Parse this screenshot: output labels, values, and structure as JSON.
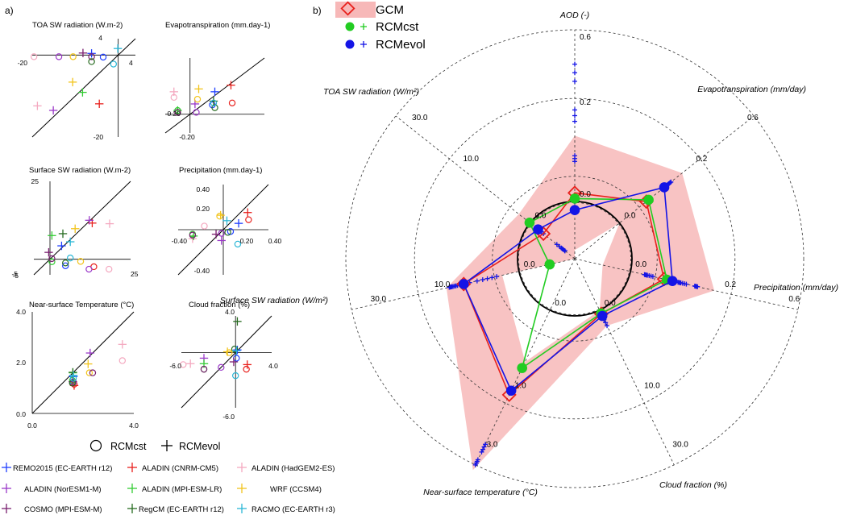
{
  "panel_labels": {
    "a": "a)",
    "b": "b)"
  },
  "colors": {
    "remo": "#1f3fff",
    "cnrm": "#e8201c",
    "hadgem": "#f4a9c0",
    "noresm": "#9a38c8",
    "mpilr": "#33cc33",
    "wrf": "#f2c41c",
    "cosmo": "#7a1f70",
    "regcm": "#276b20",
    "racmo": "#2bb7d6",
    "gcm": "#e8201c",
    "cst": "#22cc22",
    "evol": "#1414e6",
    "band": "#f7b8b8"
  },
  "chart_data": [
    {
      "type": "scatter",
      "title": "TOA SW radiation (W.m-2)",
      "xlim": [
        -20,
        4
      ],
      "ylim": [
        -20,
        4
      ],
      "tick_labels": {
        "x_left": "-20",
        "x_right": "4",
        "y_top": "4",
        "y_bottom": "-20"
      },
      "points": [
        {
          "model": "remo",
          "m": "o",
          "x": -3.5,
          "y": -0.5
        },
        {
          "model": "remo",
          "m": "+",
          "x": -6.2,
          "y": 0.4
        },
        {
          "model": "cnrm",
          "m": "+",
          "x": -4.4,
          "y": -11.9
        },
        {
          "model": "hadgem",
          "m": "o",
          "x": -19.6,
          "y": -0.4
        },
        {
          "model": "hadgem",
          "m": "+",
          "x": -18.8,
          "y": -12.4
        },
        {
          "model": "noresm",
          "m": "o",
          "x": -13.8,
          "y": -0.4
        },
        {
          "model": "noresm",
          "m": "+",
          "x": -15.1,
          "y": -13.5
        },
        {
          "model": "mpilr",
          "m": "+",
          "x": -8.3,
          "y": -9.1
        },
        {
          "model": "wrf",
          "m": "o",
          "x": -10.5,
          "y": -0.4
        },
        {
          "model": "wrf",
          "m": "+",
          "x": -10.6,
          "y": -6.6
        },
        {
          "model": "cosmo",
          "m": "o",
          "x": -6.2,
          "y": -0.4
        },
        {
          "model": "cosmo",
          "m": "+",
          "x": -8.2,
          "y": 0.5
        },
        {
          "model": "regcm",
          "m": "o",
          "x": -6.2,
          "y": -1.6
        },
        {
          "model": "racmo",
          "m": "o",
          "x": -1.1,
          "y": -2.2
        },
        {
          "model": "racmo",
          "m": "+",
          "x": -0.1,
          "y": 1.6
        }
      ]
    },
    {
      "type": "scatter",
      "title": "Evapotranspiration (mm.day-1)",
      "xlim": [
        -0.2,
        0.6
      ],
      "ylim": [
        -0.2,
        0.6
      ],
      "tick_labels": {
        "x_left": "-0.20",
        "y_bottom": "-0.20"
      },
      "points": [
        {
          "model": "remo",
          "m": "o",
          "x": 0.18,
          "y": 0.1
        },
        {
          "model": "remo",
          "m": "+",
          "x": 0.2,
          "y": 0.24
        },
        {
          "model": "cnrm",
          "m": "o",
          "x": 0.34,
          "y": 0.12
        },
        {
          "model": "cnrm",
          "m": "+",
          "x": 0.33,
          "y": 0.31
        },
        {
          "model": "hadgem",
          "m": "o",
          "x": -0.13,
          "y": 0.18
        },
        {
          "model": "hadgem",
          "m": "+",
          "x": -0.13,
          "y": 0.24
        },
        {
          "model": "noresm",
          "m": "o",
          "x": 0.05,
          "y": 0.02
        },
        {
          "model": "noresm",
          "m": "+",
          "x": 0.04,
          "y": 0.11
        },
        {
          "model": "mpilr",
          "m": "o",
          "x": -0.1,
          "y": 0.04
        },
        {
          "model": "mpilr",
          "m": "+",
          "x": -0.1,
          "y": 0.04
        },
        {
          "model": "wrf",
          "m": "o",
          "x": 0.06,
          "y": 0.16
        },
        {
          "model": "wrf",
          "m": "+",
          "x": 0.07,
          "y": 0.27
        },
        {
          "model": "cosmo",
          "m": "o",
          "x": -0.1,
          "y": 0.02
        },
        {
          "model": "regcm",
          "m": "o",
          "x": 0.2,
          "y": 0.07
        },
        {
          "model": "regcm",
          "m": "+",
          "x": 0.19,
          "y": 0.14
        },
        {
          "model": "racmo",
          "m": "o",
          "x": 0.19,
          "y": 0.12
        }
      ]
    },
    {
      "type": "scatter",
      "title": "Surface SW radiation (W.m-2)",
      "xlim": [
        -5,
        25
      ],
      "ylim": [
        -5,
        25
      ],
      "tick_labels": {
        "x_left": "-5",
        "x_right": "25",
        "y_top": "25",
        "y_bottom": "-5"
      },
      "points": [
        {
          "model": "remo",
          "m": "o",
          "x": 4.8,
          "y": -2.1
        },
        {
          "model": "remo",
          "m": "+",
          "x": 3.6,
          "y": 4.3
        },
        {
          "model": "cnrm",
          "m": "o",
          "x": 13.6,
          "y": -2.4
        },
        {
          "model": "cnrm",
          "m": "+",
          "x": 13.1,
          "y": 11.6
        },
        {
          "model": "hadgem",
          "m": "o",
          "x": 18.3,
          "y": -3.2
        },
        {
          "model": "hadgem",
          "m": "+",
          "x": 18.5,
          "y": 11.4
        },
        {
          "model": "noresm",
          "m": "o",
          "x": 12.1,
          "y": -3.2
        },
        {
          "model": "noresm",
          "m": "+",
          "x": 12.2,
          "y": 12.5
        },
        {
          "model": "mpilr",
          "m": "o",
          "x": 0.6,
          "y": -0.8
        },
        {
          "model": "mpilr",
          "m": "+",
          "x": 0.6,
          "y": 7.6
        },
        {
          "model": "wrf",
          "m": "o",
          "x": 9.5,
          "y": -0.7
        },
        {
          "model": "wrf",
          "m": "+",
          "x": 7.8,
          "y": 9.8
        },
        {
          "model": "cosmo",
          "m": "o",
          "x": 0.6,
          "y": 0.2
        },
        {
          "model": "cosmo",
          "m": "+",
          "x": -0.4,
          "y": 2.2
        },
        {
          "model": "regcm",
          "m": "o",
          "x": 4.8,
          "y": -1.2
        },
        {
          "model": "regcm",
          "m": "+",
          "x": 4.0,
          "y": 8.2
        },
        {
          "model": "racmo",
          "m": "o",
          "x": 6.3,
          "y": 0.4
        },
        {
          "model": "racmo",
          "m": "+",
          "x": 6.3,
          "y": 5.6
        }
      ]
    },
    {
      "type": "scatter",
      "title": "Precipitation (mm.day-1)",
      "xlim": [
        -0.5,
        0.5
      ],
      "ylim": [
        -0.5,
        0.5
      ],
      "tick_labels": {
        "x_left": "-0.40",
        "x_mid": "0.20",
        "x_right": "0.40",
        "y_top": "0.40",
        "y_mid": "0.20",
        "y_bottom": "-0.40"
      },
      "points": [
        {
          "model": "remo",
          "m": "o",
          "x": 0.08,
          "y": -0.02
        },
        {
          "model": "remo",
          "m": "+",
          "x": 0.17,
          "y": 0.07
        },
        {
          "model": "cnrm",
          "m": "o",
          "x": 0.28,
          "y": 0.11
        },
        {
          "model": "cnrm",
          "m": "+",
          "x": 0.27,
          "y": 0.19
        },
        {
          "model": "hadgem",
          "m": "o",
          "x": -0.21,
          "y": 0.04
        },
        {
          "model": "hadgem",
          "m": "+",
          "x": -0.34,
          "y": -0.1
        },
        {
          "model": "noresm",
          "m": "o",
          "x": -0.02,
          "y": -0.04
        },
        {
          "model": "noresm",
          "m": "+",
          "x": -0.02,
          "y": -0.12
        },
        {
          "model": "mpilr",
          "m": "o",
          "x": -0.34,
          "y": -0.05
        },
        {
          "model": "mpilr",
          "m": "+",
          "x": -0.33,
          "y": -0.07
        },
        {
          "model": "wrf",
          "m": "o",
          "x": -0.04,
          "y": 0.15
        },
        {
          "model": "wrf",
          "m": "+",
          "x": -0.03,
          "y": 0.16
        },
        {
          "model": "cosmo",
          "m": "o",
          "x": -0.34,
          "y": -0.06
        },
        {
          "model": "cosmo",
          "m": "+",
          "x": -0.08,
          "y": -0.05
        },
        {
          "model": "regcm",
          "m": "o",
          "x": 0.05,
          "y": -0.03
        },
        {
          "model": "racmo",
          "m": "o",
          "x": 0.16,
          "y": -0.16
        },
        {
          "model": "racmo",
          "m": "+",
          "x": 0.04,
          "y": 0.1
        }
      ]
    },
    {
      "type": "scatter",
      "title": "Near-surface Temperature (°C)",
      "xlim": [
        0,
        4
      ],
      "ylim": [
        0,
        4
      ],
      "tick_labels": {
        "x_left": "0.0",
        "x_right": "4.0",
        "y_top": "4.0",
        "y_mid": "2.0",
        "y_bottom": "0.0"
      },
      "points": [
        {
          "model": "remo",
          "m": "o",
          "x": 1.6,
          "y": 1.2
        },
        {
          "model": "remo",
          "m": "+",
          "x": 1.62,
          "y": 1.45
        },
        {
          "model": "cnrm",
          "m": "o",
          "x": 1.65,
          "y": 1.15
        },
        {
          "model": "cnrm",
          "m": "+",
          "x": 1.65,
          "y": 1.1
        },
        {
          "model": "hadgem",
          "m": "o",
          "x": 3.55,
          "y": 2.08
        },
        {
          "model": "hadgem",
          "m": "+",
          "x": 3.55,
          "y": 2.72
        },
        {
          "model": "noresm",
          "m": "o",
          "x": 1.62,
          "y": 1.25
        },
        {
          "model": "noresm",
          "m": "+",
          "x": 2.28,
          "y": 2.38
        },
        {
          "model": "mpilr",
          "m": "o",
          "x": 1.58,
          "y": 1.3
        },
        {
          "model": "mpilr",
          "m": "+",
          "x": 1.6,
          "y": 1.6
        },
        {
          "model": "wrf",
          "m": "o",
          "x": 2.25,
          "y": 1.6
        },
        {
          "model": "wrf",
          "m": "+",
          "x": 2.2,
          "y": 1.95
        },
        {
          "model": "cosmo",
          "m": "o",
          "x": 2.38,
          "y": 1.6
        },
        {
          "model": "cosmo",
          "m": "+",
          "x": 1.6,
          "y": 1.25
        },
        {
          "model": "regcm",
          "m": "o",
          "x": 1.58,
          "y": 1.2
        },
        {
          "model": "regcm",
          "m": "+",
          "x": 1.6,
          "y": 1.62
        },
        {
          "model": "racmo",
          "m": "o",
          "x": 1.62,
          "y": 1.38
        },
        {
          "model": "racmo",
          "m": "+",
          "x": 1.62,
          "y": 1.5
        }
      ]
    },
    {
      "type": "scatter",
      "title": "Cloud fraction (%)",
      "xlim": [
        -6,
        4
      ],
      "ylim": [
        -6,
        4
      ],
      "tick_labels": {
        "x_left": "-6.0",
        "x_right": "4.0",
        "y_top": "4.0",
        "y_bottom": "-6.0"
      },
      "points": [
        {
          "model": "remo",
          "m": "o",
          "x": 0.1,
          "y": -0.6
        },
        {
          "model": "remo",
          "m": "+",
          "x": 0.2,
          "y": 0.3
        },
        {
          "model": "cnrm",
          "m": "o",
          "x": 1.2,
          "y": -1.8
        },
        {
          "model": "cnrm",
          "m": "+",
          "x": 1.3,
          "y": -1.3
        },
        {
          "model": "hadgem",
          "m": "o",
          "x": -5.8,
          "y": -1.3
        },
        {
          "model": "hadgem",
          "m": "+",
          "x": -5.0,
          "y": -1.2
        },
        {
          "model": "noresm",
          "m": "o",
          "x": -1.6,
          "y": -1.6
        },
        {
          "model": "noresm",
          "m": "+",
          "x": -3.5,
          "y": -0.6
        },
        {
          "model": "mpilr",
          "m": "o",
          "x": -3.5,
          "y": -1.8
        },
        {
          "model": "mpilr",
          "m": "+",
          "x": -3.5,
          "y": -1.2
        },
        {
          "model": "wrf",
          "m": "o",
          "x": -0.7,
          "y": 0.0
        },
        {
          "model": "wrf",
          "m": "+",
          "x": -0.9,
          "y": 0.1
        },
        {
          "model": "cosmo",
          "m": "o",
          "x": -3.5,
          "y": -1.8
        },
        {
          "model": "cosmo",
          "m": "+",
          "x": -0.2,
          "y": -1.0
        },
        {
          "model": "regcm",
          "m": "o",
          "x": -0.1,
          "y": 0.4
        },
        {
          "model": "regcm",
          "m": "+",
          "x": 0.2,
          "y": 3.4
        },
        {
          "model": "racmo",
          "m": "o",
          "x": 0.0,
          "y": -2.5
        },
        {
          "model": "racmo",
          "m": "+",
          "x": 0.1,
          "y": 0.2
        }
      ]
    },
    {
      "type": "radar",
      "legend": [
        "GCM",
        "RCMcst",
        "RCMevol"
      ],
      "axes": [
        {
          "name": "AOD (-)",
          "outer": "0.6",
          "inner": "0.2",
          "zero": "0.0"
        },
        {
          "name": "Evapotranspiration (mm/day)",
          "outer": "0.6",
          "inner": "0.2",
          "zero": "0.0"
        },
        {
          "name": "Precipitation (mm/day)",
          "outer": "0.6",
          "inner": "0.2",
          "zero": "0.0"
        },
        {
          "name": "Cloud fraction (%)",
          "outer": "30.0",
          "inner": "10.0",
          "zero": "0.0"
        },
        {
          "name": "Near-surface temperature (°C)",
          "outer": "3.0",
          "inner": "1.0",
          "zero": "0.0"
        },
        {
          "name": "Surface SW radiation (W/m²)",
          "outer": "30.0",
          "inner": "10.0",
          "zero": "0.0"
        },
        {
          "name": "TOA SW radiation (W/m²)",
          "outer": "30.0",
          "inner": "10.0",
          "zero": "0.0"
        }
      ],
      "series": [
        {
          "name": "GCM",
          "values": [
            0.03,
            0.12,
            0.12,
            0.7,
            1.64,
            9.9,
            -3.0
          ]
        },
        {
          "name": "RCMcst",
          "values": [
            0.01,
            0.13,
            0.13,
            0.6,
            1.12,
            -5.5,
            0.1
          ]
        },
        {
          "name": "RCMevol",
          "values": [
            -0.03,
            0.2,
            0.15,
            1.1,
            1.56,
            9.9,
            -1.8
          ]
        }
      ],
      "band": [
        [
          -0.17,
          0.23
        ],
        [
          0.0,
          0.28
        ],
        [
          -0.1,
          0.3
        ],
        [
          0.0,
          3.0
        ],
        [
          1.0,
          3.1
        ],
        [
          3.0,
          13.0
        ],
        [
          -10.0,
          2.5
        ]
      ],
      "spread_plus": [
        [
          [
            0.0,
            0.42
          ],
          [
            0.0,
            0.45
          ],
          [
            0.0,
            0.48
          ]
        ],
        [
          [
            0.19,
            0.2
          ],
          [
            0.2,
            0.21
          ],
          [
            0.21,
            0.22
          ],
          [
            0.22,
            0.23
          ]
        ],
        [
          [
            0.05,
            0.06
          ],
          [
            0.06,
            0.08
          ],
          [
            0.17,
            0.18
          ],
          [
            0.18,
            0.2
          ],
          [
            0.23,
            0.24
          ]
        ],
        [
          [
            0.4,
            1.5
          ],
          [
            1.2,
            3.0
          ],
          [
            0.3,
            0.6
          ]
        ],
        [
          [
            2.6,
            2.75
          ],
          [
            2.9,
            3.0
          ]
        ],
        [
          [
            4.0,
            6.5
          ],
          [
            7.5,
            11.5
          ],
          [
            11.0,
            11.8
          ],
          [
            12.0,
            12.5
          ]
        ],
        [
          [
            -7.8,
            -6.0
          ],
          [
            -7.8,
            -7.0
          ],
          [
            -3.0,
            -1.5
          ]
        ]
      ]
    }
  ],
  "scatter_legend": {
    "circle_label": "RCMcst",
    "plus_label": "RCMevol"
  },
  "model_legend": [
    {
      "key": "remo",
      "label": "REMO2015 (EC-EARTH r12)"
    },
    {
      "key": "cnrm",
      "label": "ALADIN (CNRM-CM5)"
    },
    {
      "key": "hadgem",
      "label": "ALADIN (HadGEM2-ES)"
    },
    {
      "key": "noresm",
      "label": "ALADIN (NorESM1-M)"
    },
    {
      "key": "mpilr",
      "label": "ALADIN (MPI-ESM-LR)"
    },
    {
      "key": "wrf",
      "label": "WRF (CCSM4)"
    },
    {
      "key": "cosmo",
      "label": "COSMO (MPI-ESM-M)"
    },
    {
      "key": "regcm",
      "label": "RegCM (EC-EARTH r12)"
    },
    {
      "key": "racmo",
      "label": "RACMO (EC-EARTH r3)"
    }
  ]
}
